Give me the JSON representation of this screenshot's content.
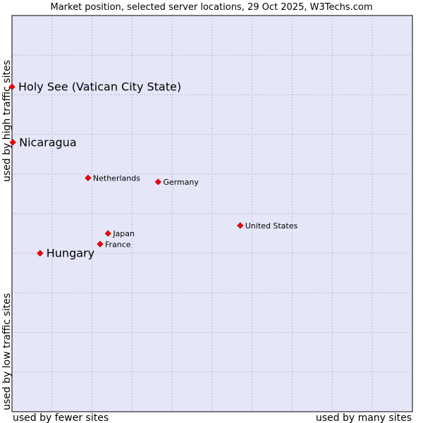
{
  "chart_data": {
    "type": "scatter",
    "title": "Market position, selected server locations, 29 Oct 2025, W3Techs.com",
    "xlabel_left": "used by fewer sites",
    "xlabel_right": "used by many sites",
    "ylabel_bottom": "used by low traffic sites",
    "ylabel_top": "used by high traffic sites",
    "xlim": [
      0,
      100
    ],
    "ylim": [
      0,
      100
    ],
    "grid": true,
    "colors": {
      "plot_bg": "#e6e6f9",
      "grid": "#9a9ab0",
      "marker": "#ee0000",
      "axis": "#000000"
    },
    "points": [
      {
        "label": "Holy See (Vatican City State)",
        "x": 0.0,
        "y": 82.0,
        "highlight": true
      },
      {
        "label": "Nicaragua",
        "x": 0.2,
        "y": 68.0,
        "highlight": true
      },
      {
        "label": "Netherlands",
        "x": 19.0,
        "y": 59.0,
        "highlight": false
      },
      {
        "label": "Germany",
        "x": 36.5,
        "y": 58.0,
        "highlight": false
      },
      {
        "label": "United States",
        "x": 57.0,
        "y": 47.0,
        "highlight": false
      },
      {
        "label": "Japan",
        "x": 24.0,
        "y": 45.0,
        "highlight": false
      },
      {
        "label": "France",
        "x": 22.0,
        "y": 42.3,
        "highlight": false
      },
      {
        "label": "Hungary",
        "x": 7.0,
        "y": 40.0,
        "highlight": true
      }
    ]
  }
}
